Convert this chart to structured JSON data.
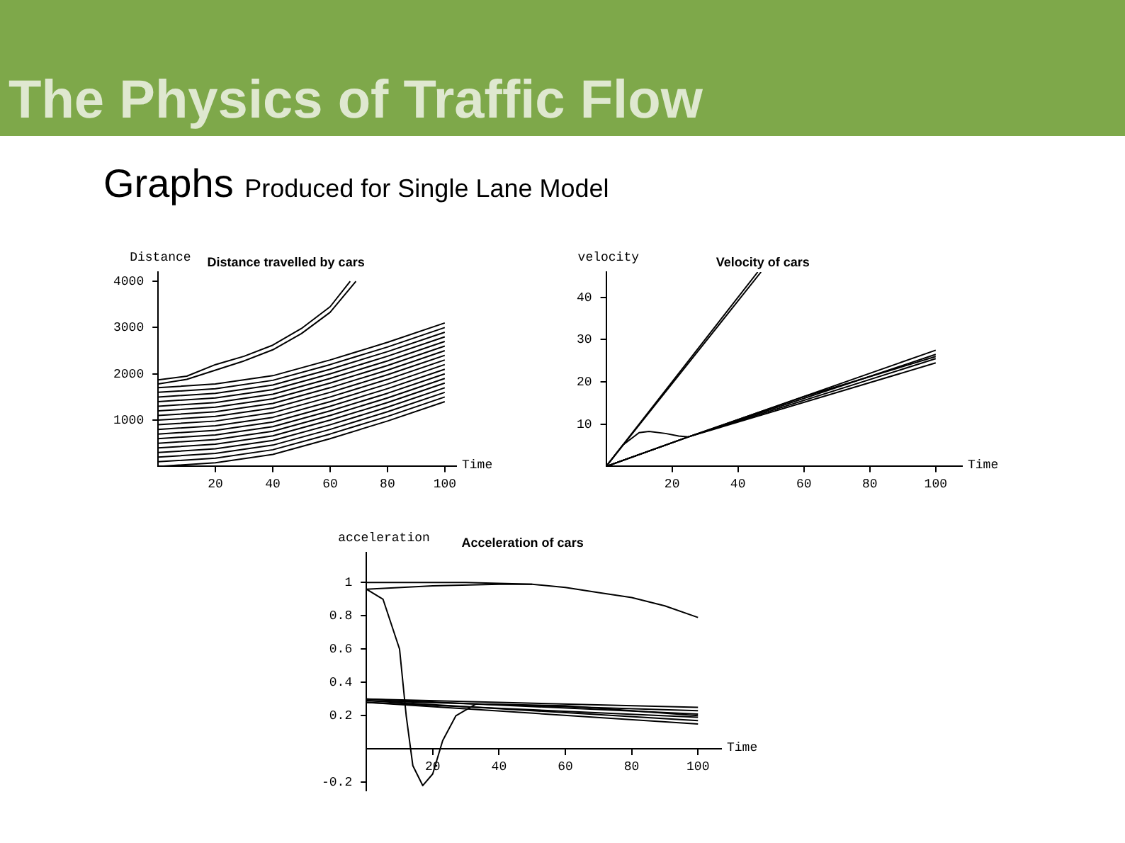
{
  "chart_data": [
    {
      "type": "line",
      "title": "Distance travelled by cars",
      "xlabel": "Time",
      "ylabel": "Distance",
      "annotations": [
        "The Physics of Traffic Flow",
        "Graphs Produced for Single Lane Model"
      ],
      "xlim": [
        0,
        104
      ],
      "ylim": [
        0,
        4200
      ],
      "xticks": [
        20,
        40,
        60,
        80,
        100
      ],
      "yticks": [
        1000,
        2000,
        3000,
        4000
      ],
      "grid": false,
      "legend": false,
      "marker": "none",
      "line_style": "solid",
      "x": [
        0,
        20,
        40,
        60,
        80,
        100
      ],
      "series": [
        {
          "color": "#000000",
          "x": [
            0,
            10,
            20,
            30,
            40,
            50,
            60,
            67
          ],
          "values": [
            1870,
            1950,
            2200,
            2380,
            2620,
            2980,
            3450,
            4000
          ]
        },
        {
          "color": "#000000",
          "x": [
            0,
            10,
            20,
            30,
            40,
            50,
            60,
            69
          ],
          "values": [
            1780,
            1880,
            2080,
            2280,
            2520,
            2870,
            3330,
            4000
          ]
        },
        {
          "color": "#000000",
          "values": [
            1700,
            1780,
            1960,
            2300,
            2680,
            3100
          ]
        },
        {
          "color": "#000000",
          "values": [
            1600,
            1680,
            1860,
            2200,
            2580,
            3000
          ]
        },
        {
          "color": "#000000",
          "values": [
            1500,
            1580,
            1760,
            2100,
            2480,
            2900
          ]
        },
        {
          "color": "#000000",
          "values": [
            1400,
            1480,
            1660,
            2000,
            2380,
            2800
          ]
        },
        {
          "color": "#000000",
          "values": [
            1300,
            1380,
            1560,
            1900,
            2280,
            2700
          ]
        },
        {
          "color": "#000000",
          "values": [
            1200,
            1280,
            1460,
            1800,
            2180,
            2600
          ]
        },
        {
          "color": "#000000",
          "values": [
            1100,
            1180,
            1360,
            1700,
            2080,
            2500
          ]
        },
        {
          "color": "#000000",
          "values": [
            1000,
            1080,
            1260,
            1600,
            1980,
            2400
          ]
        },
        {
          "color": "#000000",
          "values": [
            900,
            980,
            1160,
            1500,
            1880,
            2300
          ]
        },
        {
          "color": "#000000",
          "values": [
            800,
            880,
            1060,
            1400,
            1780,
            2200
          ]
        },
        {
          "color": "#000000",
          "values": [
            700,
            780,
            960,
            1300,
            1680,
            2100
          ]
        },
        {
          "color": "#000000",
          "values": [
            600,
            680,
            860,
            1200,
            1580,
            2000
          ]
        },
        {
          "color": "#000000",
          "values": [
            500,
            580,
            760,
            1100,
            1480,
            1900
          ]
        },
        {
          "color": "#000000",
          "values": [
            400,
            480,
            660,
            1000,
            1380,
            1800
          ]
        },
        {
          "color": "#000000",
          "values": [
            300,
            380,
            560,
            900,
            1280,
            1700
          ]
        },
        {
          "color": "#000000",
          "values": [
            200,
            280,
            460,
            800,
            1180,
            1600
          ]
        },
        {
          "color": "#000000",
          "values": [
            100,
            180,
            360,
            700,
            1080,
            1500
          ]
        },
        {
          "color": "#000000",
          "values": [
            0,
            80,
            260,
            600,
            980,
            1400
          ]
        }
      ]
    },
    {
      "type": "line",
      "title": "Velocity of cars",
      "xlabel": "Time",
      "ylabel": "velocity",
      "xlim": [
        0,
        108
      ],
      "ylim": [
        0,
        46
      ],
      "xticks": [
        20,
        40,
        60,
        80,
        100
      ],
      "yticks": [
        10,
        20,
        30,
        40
      ],
      "grid": false,
      "legend": false,
      "marker": "none",
      "line_style": "solid",
      "x": [
        0,
        25,
        100
      ],
      "series": [
        {
          "color": "#000000",
          "x": [
            0,
            46
          ],
          "values": [
            0,
            46
          ]
        },
        {
          "color": "#000000",
          "x": [
            0,
            47
          ],
          "values": [
            0,
            46
          ]
        },
        {
          "color": "#000000",
          "x": [
            0,
            5,
            10,
            13,
            18,
            22,
            25,
            60,
            100
          ],
          "values": [
            0,
            5,
            8,
            8.3,
            7.8,
            7.2,
            7,
            16.5,
            26
          ]
        },
        {
          "color": "#000000",
          "values": [
            0,
            7,
            24.5
          ]
        },
        {
          "color": "#000000",
          "values": [
            0,
            7,
            25.5
          ]
        },
        {
          "color": "#000000",
          "values": [
            0,
            7,
            26.5
          ]
        },
        {
          "color": "#000000",
          "values": [
            0,
            7,
            27.5
          ]
        }
      ]
    },
    {
      "type": "line",
      "title": "Acceleration of cars",
      "xlabel": "Time",
      "ylabel": "acceleration",
      "xlim": [
        0,
        107
      ],
      "ylim": [
        -0.25,
        1.18
      ],
      "xticks": [
        20,
        40,
        60,
        80,
        100
      ],
      "yticks": [
        -0.2,
        0.2,
        0.4,
        0.6,
        0.8,
        1
      ],
      "grid": false,
      "legend": false,
      "marker": "none",
      "line_style": "solid",
      "x": [
        0,
        100
      ],
      "series": [
        {
          "color": "#000000",
          "x": [
            0,
            30,
            50,
            60,
            70,
            80,
            90,
            100
          ],
          "values": [
            1,
            1,
            0.99,
            0.97,
            0.94,
            0.91,
            0.86,
            0.79
          ]
        },
        {
          "color": "#000000",
          "x": [
            0,
            20,
            40,
            50
          ],
          "values": [
            0.96,
            0.98,
            0.99,
            0.99
          ]
        },
        {
          "color": "#000000",
          "x": [
            0,
            5,
            10,
            12,
            14,
            17,
            20,
            23,
            27,
            33,
            60,
            100
          ],
          "values": [
            0.96,
            0.9,
            0.6,
            0.2,
            -0.1,
            -0.22,
            -0.15,
            0.05,
            0.2,
            0.27,
            0.26,
            0.2
          ]
        },
        {
          "color": "#000000",
          "values": [
            0.3,
            0.25
          ]
        },
        {
          "color": "#000000",
          "values": [
            0.29,
            0.23
          ]
        },
        {
          "color": "#000000",
          "values": [
            0.3,
            0.21
          ]
        },
        {
          "color": "#000000",
          "values": [
            0.28,
            0.19
          ]
        },
        {
          "color": "#000000",
          "values": [
            0.29,
            0.17
          ]
        },
        {
          "color": "#000000",
          "values": [
            0.28,
            0.15
          ]
        }
      ]
    }
  ]
}
